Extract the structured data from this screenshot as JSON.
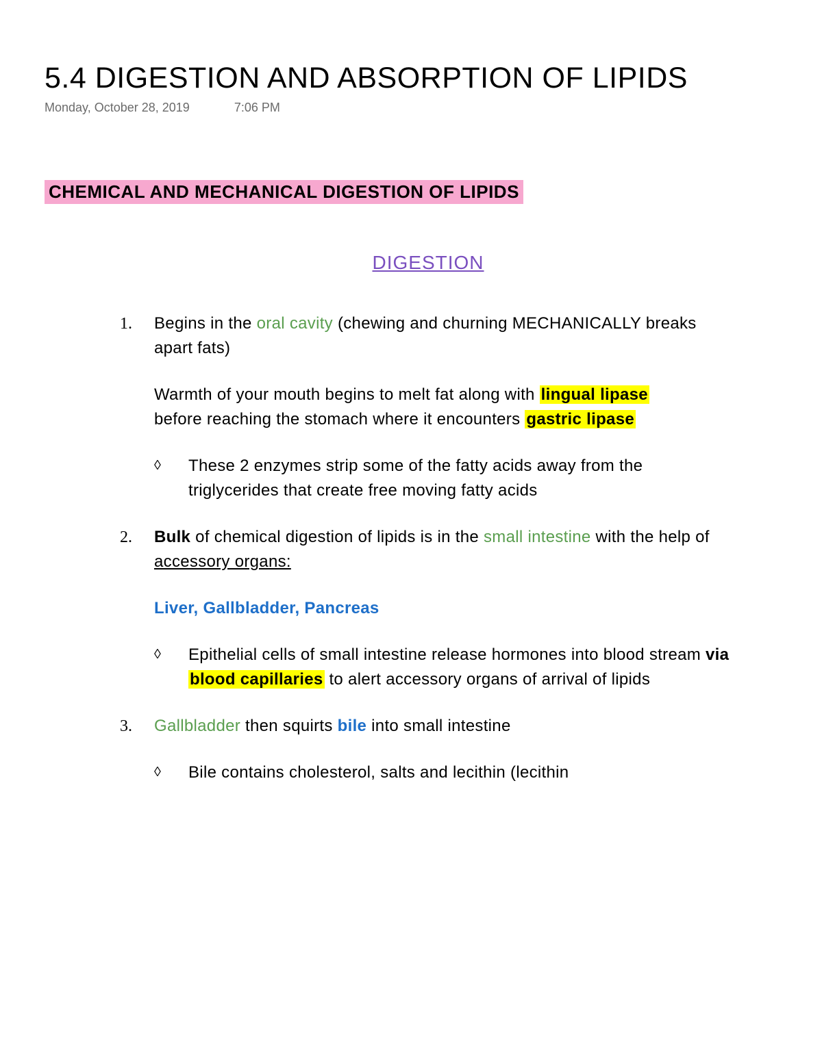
{
  "title": "5.4 DIGESTION AND ABSORPTION OF LIPIDS",
  "meta": {
    "date": "Monday, October 28, 2019",
    "time": "7:06 PM"
  },
  "section_heading": "CHEMICAL AND MECHANICAL DIGESTION OF LIPIDS",
  "sub_heading": "DIGESTION",
  "colors": {
    "highlight_pink": "#f7a8cf",
    "highlight_yellow": "#ffff00",
    "purple": "#7a4fbf",
    "green": "#5a9e4f",
    "blue": "#1e6fc9",
    "meta_gray": "#6b6b6b",
    "text": "#000000",
    "background": "#ffffff"
  },
  "items": [
    {
      "num": "1.",
      "p1_a": "Begins in the ",
      "p1_green": "oral cavity",
      "p1_b": " (chewing and churning MECHANICALLY breaks apart fats)",
      "p2_a": "Warmth of your mouth begins to melt fat along with ",
      "p2_hl": "lingual lipase",
      "p2_b": "before reaching the stomach where it encounters ",
      "p2_hl2": "gastric lipase",
      "sub": "These 2 enzymes strip some of the fatty acids away from the triglycerides that create free moving fatty acids"
    },
    {
      "num": "2.",
      "p1_bold": "Bulk",
      "p1_a": " of chemical digestion of lipids is in the ",
      "p1_green": "small intestine",
      "p1_b": " with the help of ",
      "p1_ul": "accessory organs:",
      "p2_blue": "Liver, Gallbladder, Pancreas",
      "sub_a": "Epithelial cells of small intestine release hormones into blood stream ",
      "sub_bold": "via ",
      "sub_hl": "blood capillaries",
      "sub_b": " to alert accessory organs of arrival of lipids"
    },
    {
      "num": "3.",
      "p1_green": "Gallbladder",
      "p1_a": " then squirts ",
      "p1_blue": "bile",
      "p1_b": " into small intestine",
      "sub": "Bile contains cholesterol, salts and lecithin (lecithin"
    }
  ]
}
